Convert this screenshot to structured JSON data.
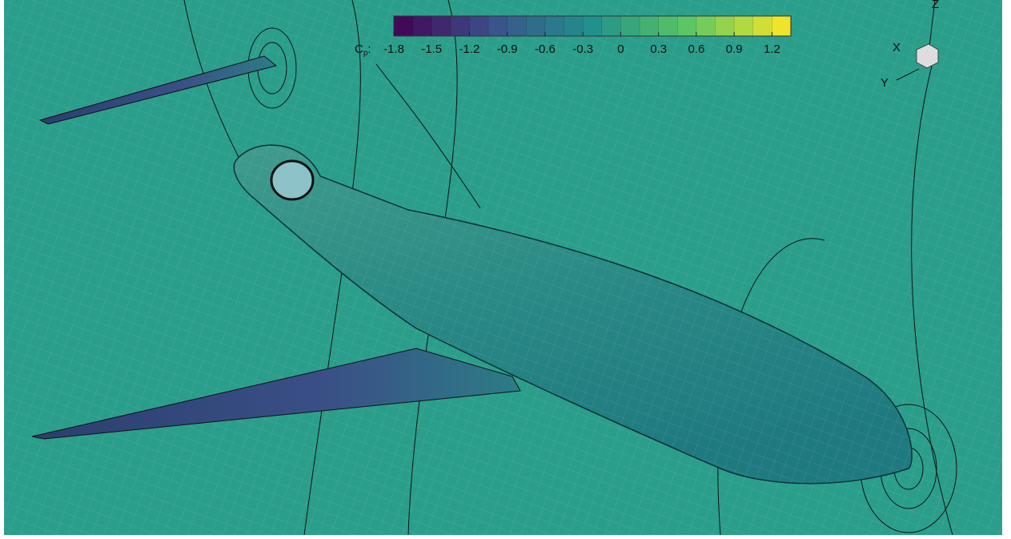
{
  "colorbar": {
    "label": {
      "base": "C",
      "subscript": "p",
      "suffix": ":"
    },
    "range": [
      -1.8,
      1.35
    ],
    "ticks": [
      -1.8,
      -1.5,
      -1.2,
      -0.9,
      -0.6,
      -0.3,
      0,
      0.3,
      0.6,
      0.9,
      1.2
    ],
    "bands": 21,
    "colormap": [
      "#440154",
      "#3b528b",
      "#21918c",
      "#5ec962",
      "#fde725"
    ]
  },
  "axes_triad": {
    "x": "X",
    "y": "Y",
    "z": "Z"
  }
}
